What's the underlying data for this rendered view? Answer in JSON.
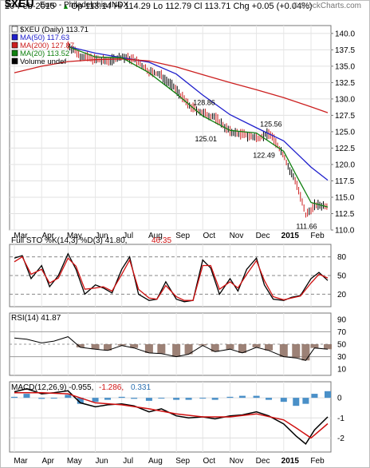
{
  "header": {
    "symbol": "$XEU",
    "name": "Euro - Philadelphia INDX",
    "watermark": "© StockCharts.com",
    "date": "20-Feb-2015",
    "quote": "Op 113.14  Hi 114.29  Lo 112.79  Cl 113.71  Chg +0.05 (+0.04%)",
    "quote_color": "#000000",
    "up_arrow": "▲"
  },
  "legend": [
    {
      "text": "$XEU (Daily) 113.71",
      "color": "#000000"
    },
    {
      "text": "MA(50) 117.63",
      "color": "#1f1fcc"
    },
    {
      "text": "MA(200) 127.87",
      "color": "#cc1f1f"
    },
    {
      "text": "MA(20) 113.52",
      "color": "#108010"
    },
    {
      "text": "Volume undef",
      "color": "#000000"
    }
  ],
  "x_axis_labels": [
    "Mar",
    "Apr",
    "May",
    "Jun",
    "Jul",
    "Aug",
    "Sep",
    "Oct",
    "Nov",
    "Dec",
    "2015",
    "Feb"
  ],
  "annotations": [
    {
      "text": "128.86",
      "x": "2014-10-01",
      "y": 128.86
    },
    {
      "text": "125.56",
      "x": "2014-12-16",
      "y": 125.56
    },
    {
      "text": "125.01",
      "x": "2014-10-03",
      "y": 125.01
    },
    {
      "text": "122.49",
      "x": "2014-12-08",
      "y": 122.49
    },
    {
      "text": "111.66",
      "x": "2015-01-26",
      "y": 111.66
    }
  ],
  "sto_label": {
    "main": "Full STO %K(14,3) %D(3) 41.80,",
    "red": " 46.35"
  },
  "rsi_label": "RSI(14) 41.87",
  "macd_label": {
    "main": "MACD(12,26,9) -0.955,",
    "red": " -1.286,",
    "blue": " 0.331"
  },
  "chart_data": [
    {
      "type": "line",
      "title": "$XEU (Daily) 113.71",
      "x_start": "2014-03-01",
      "x_end": "2015-02-20",
      "ylim": [
        110.0,
        141.2
      ],
      "y_ticks": [
        110.0,
        112.5,
        115.0,
        117.5,
        120.0,
        122.5,
        125.0,
        127.5,
        130.0,
        132.5,
        135.0,
        137.5,
        140.0
      ],
      "grid": true,
      "series": [
        {
          "name": "$XEU",
          "color": "#000000",
          "x": [
            "2014-05-01",
            "2014-05-15",
            "2014-06-01",
            "2014-06-15",
            "2014-07-01",
            "2014-07-15",
            "2014-08-01",
            "2014-08-15",
            "2014-09-01",
            "2014-09-15",
            "2014-10-01",
            "2014-10-15",
            "2014-11-01",
            "2014-11-15",
            "2014-12-01",
            "2014-12-16",
            "2015-01-01",
            "2015-01-08",
            "2015-01-15",
            "2015-01-26",
            "2015-02-05",
            "2015-02-20"
          ],
          "values": [
            138.2,
            136.6,
            136.0,
            135.8,
            136.4,
            136.0,
            134.2,
            133.6,
            131.4,
            129.0,
            127.8,
            127.2,
            125.0,
            124.6,
            124.0,
            124.8,
            121.4,
            119.0,
            117.4,
            112.2,
            113.8,
            113.7
          ]
        },
        {
          "name": "MA(50)",
          "color": "#1f1fcc",
          "x": [
            "2014-05-01",
            "2014-06-01",
            "2014-07-01",
            "2014-08-01",
            "2014-09-01",
            "2014-10-01",
            "2014-11-01",
            "2014-12-01",
            "2015-01-01",
            "2015-02-01",
            "2015-02-20"
          ],
          "values": [
            138.0,
            137.0,
            136.3,
            135.6,
            133.8,
            130.6,
            127.6,
            125.6,
            123.6,
            119.6,
            117.6
          ]
        },
        {
          "name": "MA(200)",
          "color": "#cc1f1f",
          "x": [
            "2014-03-01",
            "2014-04-01",
            "2014-05-01",
            "2014-06-01",
            "2014-07-01",
            "2014-08-01",
            "2014-09-01",
            "2014-10-01",
            "2014-11-01",
            "2014-12-01",
            "2015-01-01",
            "2015-02-01",
            "2015-02-20"
          ],
          "values": [
            134.0,
            135.0,
            135.7,
            136.0,
            136.1,
            135.8,
            134.9,
            133.7,
            132.5,
            131.4,
            130.2,
            128.8,
            127.9
          ]
        },
        {
          "name": "MA(20)",
          "color": "#108010",
          "x": [
            "2014-05-01",
            "2014-06-01",
            "2014-07-01",
            "2014-08-01",
            "2014-09-01",
            "2014-10-01",
            "2014-11-01",
            "2014-12-01",
            "2015-01-01",
            "2015-01-15",
            "2015-02-01",
            "2015-02-20"
          ],
          "values": [
            138.0,
            136.4,
            136.3,
            134.0,
            130.8,
            127.4,
            125.2,
            124.8,
            122.0,
            118.4,
            114.2,
            113.5
          ]
        }
      ]
    },
    {
      "type": "line",
      "title": "Full STO %K(14,3) %D(3) 41.80, 46.35",
      "ylim": [
        0,
        100
      ],
      "y_ticks": [
        20,
        50,
        80
      ],
      "series": [
        {
          "name": "%K",
          "color": "#000000",
          "x": [
            "2014-03-01",
            "2014-03-10",
            "2014-03-20",
            "2014-04-01",
            "2014-04-10",
            "2014-04-20",
            "2014-05-01",
            "2014-05-10",
            "2014-05-20",
            "2014-06-01",
            "2014-06-10",
            "2014-06-20",
            "2014-07-01",
            "2014-07-10",
            "2014-07-20",
            "2014-08-01",
            "2014-08-10",
            "2014-08-20",
            "2014-09-01",
            "2014-09-10",
            "2014-09-20",
            "2014-10-01",
            "2014-10-10",
            "2014-10-20",
            "2014-11-01",
            "2014-11-10",
            "2014-11-20",
            "2014-12-01",
            "2014-12-10",
            "2014-12-20",
            "2015-01-01",
            "2015-01-10",
            "2015-01-20",
            "2015-02-01",
            "2015-02-10",
            "2015-02-20"
          ],
          "values": [
            78,
            82,
            45,
            66,
            32,
            50,
            85,
            60,
            20,
            35,
            30,
            22,
            60,
            80,
            20,
            10,
            12,
            40,
            12,
            8,
            10,
            75,
            62,
            20,
            45,
            25,
            60,
            78,
            35,
            12,
            10,
            15,
            18,
            45,
            55,
            42
          ]
        },
        {
          "name": "%D",
          "color": "#d01010",
          "x": [
            "2014-03-01",
            "2014-03-10",
            "2014-03-20",
            "2014-04-01",
            "2014-04-10",
            "2014-04-20",
            "2014-05-01",
            "2014-05-10",
            "2014-05-20",
            "2014-06-01",
            "2014-06-10",
            "2014-06-20",
            "2014-07-01",
            "2014-07-10",
            "2014-07-20",
            "2014-08-01",
            "2014-08-10",
            "2014-08-20",
            "2014-09-01",
            "2014-09-10",
            "2014-09-20",
            "2014-10-01",
            "2014-10-10",
            "2014-10-20",
            "2014-11-01",
            "2014-11-10",
            "2014-11-20",
            "2014-12-01",
            "2014-12-10",
            "2014-12-20",
            "2015-01-01",
            "2015-01-10",
            "2015-01-20",
            "2015-02-01",
            "2015-02-10",
            "2015-02-20"
          ],
          "values": [
            72,
            80,
            52,
            60,
            38,
            46,
            78,
            65,
            28,
            30,
            32,
            25,
            52,
            75,
            28,
            14,
            12,
            34,
            16,
            10,
            10,
            66,
            66,
            28,
            40,
            30,
            52,
            74,
            42,
            16,
            11,
            14,
            17,
            38,
            52,
            46
          ]
        }
      ]
    },
    {
      "type": "area",
      "title": "RSI(14) 41.87",
      "ylim": [
        0,
        100
      ],
      "y_ticks": [
        10,
        30,
        50,
        70,
        90
      ],
      "series": [
        {
          "name": "RSI(14)",
          "color": "#000000",
          "x": [
            "2014-03-01",
            "2014-03-15",
            "2014-04-01",
            "2014-04-15",
            "2014-05-01",
            "2014-05-15",
            "2014-06-01",
            "2014-06-15",
            "2014-07-01",
            "2014-07-15",
            "2014-08-01",
            "2014-08-15",
            "2014-09-01",
            "2014-09-15",
            "2014-10-01",
            "2014-10-15",
            "2014-11-01",
            "2014-11-15",
            "2014-12-01",
            "2014-12-15",
            "2015-01-01",
            "2015-01-15",
            "2015-01-26",
            "2015-02-05",
            "2015-02-20"
          ],
          "values": [
            60,
            58,
            52,
            55,
            62,
            45,
            42,
            40,
            48,
            44,
            36,
            35,
            30,
            34,
            48,
            38,
            42,
            36,
            45,
            40,
            30,
            28,
            24,
            44,
            42
          ]
        }
      ]
    },
    {
      "type": "line",
      "title": "MACD(12,26,9) -0.955, -1.286, 0.331",
      "ylim": [
        -2.7,
        0.8
      ],
      "y_ticks": [
        -2,
        -1,
        0
      ],
      "series": [
        {
          "name": "MACD",
          "color": "#000000",
          "x": [
            "2014-03-01",
            "2014-03-15",
            "2014-04-01",
            "2014-04-15",
            "2014-05-01",
            "2014-05-15",
            "2014-06-01",
            "2014-06-15",
            "2014-07-01",
            "2014-07-15",
            "2014-08-01",
            "2014-08-15",
            "2014-09-01",
            "2014-09-15",
            "2014-10-01",
            "2014-10-15",
            "2014-11-01",
            "2014-11-15",
            "2014-12-01",
            "2014-12-15",
            "2015-01-01",
            "2015-01-15",
            "2015-01-26",
            "2015-02-05",
            "2015-02-20"
          ],
          "values": [
            0.3,
            0.45,
            0.2,
            0.25,
            0.35,
            -0.25,
            -0.45,
            -0.35,
            -0.3,
            -0.4,
            -0.7,
            -0.55,
            -0.9,
            -1.0,
            -0.95,
            -1.05,
            -0.9,
            -0.85,
            -0.7,
            -0.9,
            -1.3,
            -1.9,
            -2.3,
            -1.6,
            -0.95
          ]
        },
        {
          "name": "Signal",
          "color": "#d01010",
          "x": [
            "2014-03-01",
            "2014-04-01",
            "2014-05-01",
            "2014-06-01",
            "2014-07-01",
            "2014-08-01",
            "2014-09-01",
            "2014-10-01",
            "2014-11-01",
            "2014-12-01",
            "2015-01-01",
            "2015-01-15",
            "2015-02-01",
            "2015-02-20"
          ],
          "values": [
            0.25,
            0.25,
            0.2,
            -0.25,
            -0.35,
            -0.55,
            -0.8,
            -0.95,
            -0.95,
            -0.8,
            -1.1,
            -1.5,
            -2.0,
            -1.29
          ]
        },
        {
          "name": "Histogram",
          "color": "#4a90c8",
          "x": [
            "2014-03-01",
            "2014-03-15",
            "2014-04-01",
            "2014-04-15",
            "2014-05-01",
            "2014-05-15",
            "2014-06-01",
            "2014-06-15",
            "2014-07-01",
            "2014-07-15",
            "2014-08-01",
            "2014-08-15",
            "2014-09-01",
            "2014-09-15",
            "2014-10-01",
            "2014-10-15",
            "2014-11-01",
            "2014-11-15",
            "2014-12-01",
            "2014-12-15",
            "2015-01-01",
            "2015-01-15",
            "2015-01-26",
            "2015-02-05",
            "2015-02-20"
          ],
          "values": [
            0.05,
            0.2,
            -0.05,
            0.0,
            0.15,
            -0.3,
            -0.2,
            -0.1,
            0.05,
            -0.05,
            -0.15,
            0.0,
            -0.1,
            -0.1,
            0.0,
            -0.1,
            0.05,
            0.1,
            0.1,
            -0.1,
            -0.2,
            -0.4,
            -0.3,
            0.2,
            0.33
          ]
        }
      ]
    }
  ]
}
